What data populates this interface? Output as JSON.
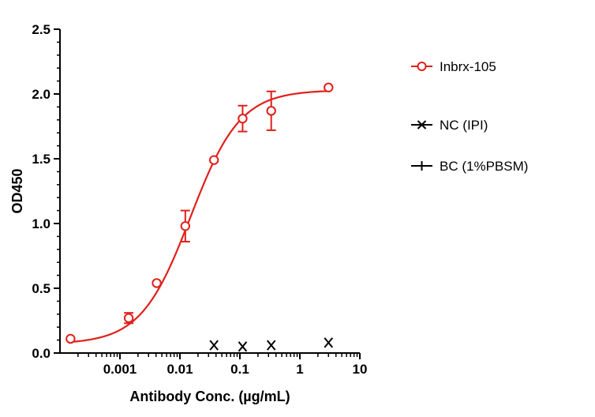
{
  "chart_data": {
    "type": "scatter",
    "xlabel": "Antibody Conc. (µg/mL)",
    "ylabel": "OD450",
    "xscale": "log",
    "xlim": [
      0.0001,
      10
    ],
    "ylim": [
      0,
      2.5
    ],
    "x_ticks": [
      "0.001",
      "0.01",
      "0.1",
      "1",
      "10"
    ],
    "y_ticks": [
      "0.0",
      "0.5",
      "1.0",
      "1.5",
      "2.0",
      "2.5"
    ],
    "legend_position": "right",
    "series": [
      {
        "name": "Inbrx-105",
        "color": "#e0201b",
        "marker": "open-circle",
        "fit_curve": true,
        "points": [
          {
            "x": 0.00015,
            "y": 0.11,
            "err": 0
          },
          {
            "x": 0.0014,
            "y": 0.27,
            "err": 0.04
          },
          {
            "x": 0.0041,
            "y": 0.54,
            "err": 0
          },
          {
            "x": 0.0123,
            "y": 0.98,
            "err": 0.12
          },
          {
            "x": 0.037,
            "y": 1.49,
            "err": 0
          },
          {
            "x": 0.111,
            "y": 1.81,
            "err": 0.1
          },
          {
            "x": 0.333,
            "y": 1.87,
            "err": 0.15
          },
          {
            "x": 3.0,
            "y": 2.05,
            "err": 0
          }
        ]
      },
      {
        "name": "NC (IPI)",
        "color": "#000000",
        "marker": "x",
        "points": [
          {
            "x": 0.037,
            "y": 0.06
          },
          {
            "x": 0.111,
            "y": 0.05
          },
          {
            "x": 0.333,
            "y": 0.06
          },
          {
            "x": 3.0,
            "y": 0.08
          }
        ]
      },
      {
        "name": "BC (1%PBSM)",
        "color": "#000000",
        "marker": "plus",
        "points": []
      }
    ]
  }
}
